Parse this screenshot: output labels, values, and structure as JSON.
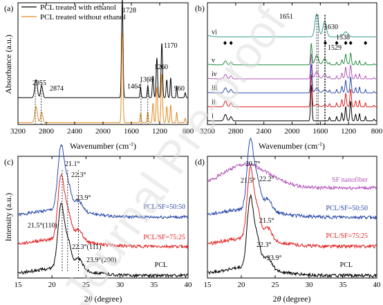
{
  "chart_data": [
    {
      "panel": "(a)",
      "type": "line",
      "xlabel": "Wavenumber (cm⁻¹)",
      "ylabel": "Absorbance (a.u.)",
      "xlim": [
        3200,
        800
      ],
      "x_reversed": true,
      "xticks": [
        3200,
        2800,
        2400,
        2000,
        1600,
        1200,
        800
      ],
      "legend": {
        "placement": "top-left"
      },
      "series": [
        {
          "name": "PCL treated with ethanol",
          "color": "#000000",
          "offset": 1.0
        },
        {
          "name": "PCL treated without ethanol",
          "color": "#e8891d",
          "offset": 0.0
        }
      ],
      "peaks": [
        {
          "x": 2955,
          "label": "2955"
        },
        {
          "x": 2874,
          "label": "2874"
        },
        {
          "x": 1728,
          "label": "1728"
        },
        {
          "x": 1464,
          "label": "1464"
        },
        {
          "x": 1368,
          "label": "1368"
        },
        {
          "x": 1260,
          "label": "1260"
        },
        {
          "x": 1170,
          "label": "1170"
        },
        {
          "x": 960,
          "label": "960"
        }
      ]
    },
    {
      "panel": "(b)",
      "type": "line",
      "xlabel": "Wavenumber (cm⁻¹)",
      "ylabel": "",
      "xlim": [
        3200,
        800
      ],
      "x_reversed": true,
      "xticks": [
        3200,
        2800,
        2400,
        2000,
        1600,
        1200,
        800
      ],
      "series": [
        {
          "name": "i",
          "color": "#000000",
          "offset": 0
        },
        {
          "name": "ii",
          "color": "#e01f1f",
          "offset": 1
        },
        {
          "name": "iii",
          "color": "#2b4aa8",
          "offset": 2
        },
        {
          "name": "iv",
          "color": "#b455b8",
          "offset": 3
        },
        {
          "name": "v",
          "color": "#1f8c3a",
          "offset": 4
        },
        {
          "name": "vi",
          "color": "#2f9e8a",
          "offset": 6
        }
      ],
      "peaks": [
        {
          "x": 1651,
          "label": "1651"
        },
        {
          "x": 1630,
          "label": "1630"
        },
        {
          "x": 1538,
          "label": "1538"
        },
        {
          "x": 1529,
          "label": "1529"
        }
      ],
      "diamond_markers_x": [
        2950,
        2865,
        1728,
        1530,
        1368,
        1240,
        1170,
        960
      ]
    },
    {
      "panel": "(c)",
      "type": "line",
      "xlabel": "2θ (degree)",
      "ylabel": "Intensity (a.u.)",
      "xlim": [
        15,
        40
      ],
      "xticks": [
        15,
        20,
        25,
        30,
        35,
        40
      ],
      "series": [
        {
          "name": "PCL/SF=50:50",
          "color": "#2b4aa8",
          "offset": 2
        },
        {
          "name": "PCL/SF=75:25",
          "color": "#e01f1f",
          "offset": 1
        },
        {
          "name": "PCL",
          "color": "#000000",
          "offset": 0
        }
      ],
      "annotations": [
        "21.1°",
        "22.3°",
        "23.9°",
        "21.5°(110)",
        "22.3°(111)",
        "23.9°(200)"
      ]
    },
    {
      "panel": "(d)",
      "type": "line",
      "xlabel": "2θ (degree)",
      "ylabel": "",
      "xlim": [
        15,
        40
      ],
      "xticks": [
        15,
        20,
        25,
        30,
        35,
        40
      ],
      "series": [
        {
          "name": "SF nanofiber",
          "color": "#b455b8",
          "offset": 3
        },
        {
          "name": "PCL/SF=50:50",
          "color": "#2b4aa8",
          "offset": 2
        },
        {
          "name": "PCL/SF=75:25",
          "color": "#e01f1f",
          "offset": 1
        },
        {
          "name": "PCL",
          "color": "#000000",
          "offset": 0
        }
      ],
      "annotations": [
        "20.7°",
        "21.5°",
        "22.2°",
        "21.5°",
        "22.3°",
        "23.9°"
      ]
    }
  ],
  "text": {
    "panel_a": "(a)",
    "panel_b": "(b)",
    "panel_c": "(c)",
    "panel_d": "(d)",
    "legend_a1": "PCL treated with ethanol",
    "legend_a2": "PCL treated without ethanol",
    "ylabel_a": "Absorbance (a.u.)",
    "ylabel_c": "Intensity (a.u.)",
    "xlabel_top": "Wavenumber (cm",
    "xlabel_top_sup": "-1",
    "xlabel_top_end": ")",
    "xlabel_bottom_pre": "2",
    "xlabel_bottom_theta": "θ",
    "xlabel_bottom_post": " (degree)",
    "roman": [
      "i",
      "ii",
      "iii",
      "iv",
      "v",
      "vi"
    ],
    "c_labels": [
      "PCL/SF=50:50",
      "PCL/SF=75:25",
      "PCL"
    ],
    "d_labels": [
      "SF nanofiber",
      "PCL/SF=50:50",
      "PCL/SF=75:25",
      "PCL"
    ],
    "c_ann": [
      "21.1°",
      "22.3°",
      "23.9°",
      "21.5°(110)",
      "22.3°(111)",
      "23.9°(200)"
    ],
    "d_ann": [
      "20.7°",
      "21.5°",
      "22.2°",
      "21.5°",
      "22.3°",
      "23.9°"
    ],
    "ir_peaks_a": [
      "2955",
      "2874",
      "1728",
      "1464",
      "1368",
      "1260",
      "1170",
      "960"
    ],
    "ir_peaks_b": [
      "1651",
      "1630",
      "1538",
      "1529"
    ],
    "ticks_wn": [
      "3200",
      "2800",
      "2400",
      "2000",
      "1600",
      "1200",
      "800"
    ],
    "ticks_2t": [
      "15",
      "20",
      "25",
      "30",
      "35",
      "40"
    ]
  },
  "watermark": "Journal Pre-proof"
}
